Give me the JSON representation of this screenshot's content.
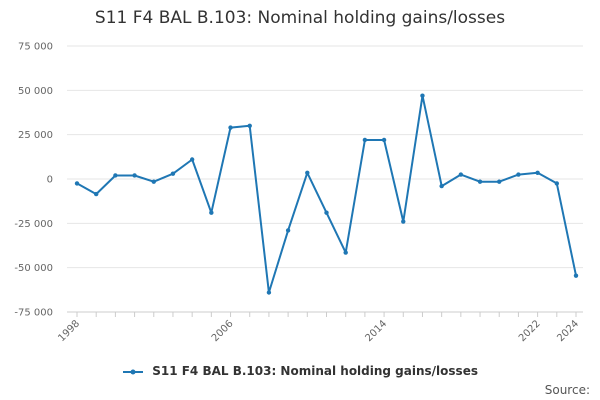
{
  "chart_data": {
    "type": "line",
    "title": "S11 F4 BAL B.103: Nominal holding gains/losses",
    "xlabel": "",
    "ylabel": "",
    "x": [
      1998,
      1999,
      2000,
      2001,
      2002,
      2003,
      2004,
      2005,
      2006,
      2007,
      2008,
      2009,
      2010,
      2011,
      2012,
      2013,
      2014,
      2015,
      2016,
      2017,
      2018,
      2019,
      2020,
      2021,
      2022,
      2023,
      2024
    ],
    "series": [
      {
        "name": "S11 F4 BAL B.103: Nominal holding gains/losses",
        "color": "#1f77b4",
        "values": [
          -2500,
          -8500,
          2000,
          2000,
          -1500,
          3000,
          11000,
          -19000,
          29000,
          30000,
          -64000,
          -29000,
          3500,
          -19000,
          -41500,
          22000,
          22000,
          -24000,
          47000,
          -4000,
          2500,
          -1500,
          -1500,
          2500,
          3500,
          -2500,
          -54500
        ]
      }
    ],
    "xticks": [
      1998,
      2006,
      2014,
      2022,
      2024
    ],
    "yticks": [
      -75000,
      -50000,
      -25000,
      0,
      25000,
      50000,
      75000
    ],
    "ytick_labels": [
      "-75 000",
      "-50 000",
      "-25 000",
      "0",
      "25 000",
      "50 000",
      "75 000"
    ],
    "ylim": [
      -75000,
      75000
    ],
    "xlim": [
      1998,
      2024
    ],
    "grid": true,
    "legend_position": "bottom"
  },
  "source_label": "Source:"
}
